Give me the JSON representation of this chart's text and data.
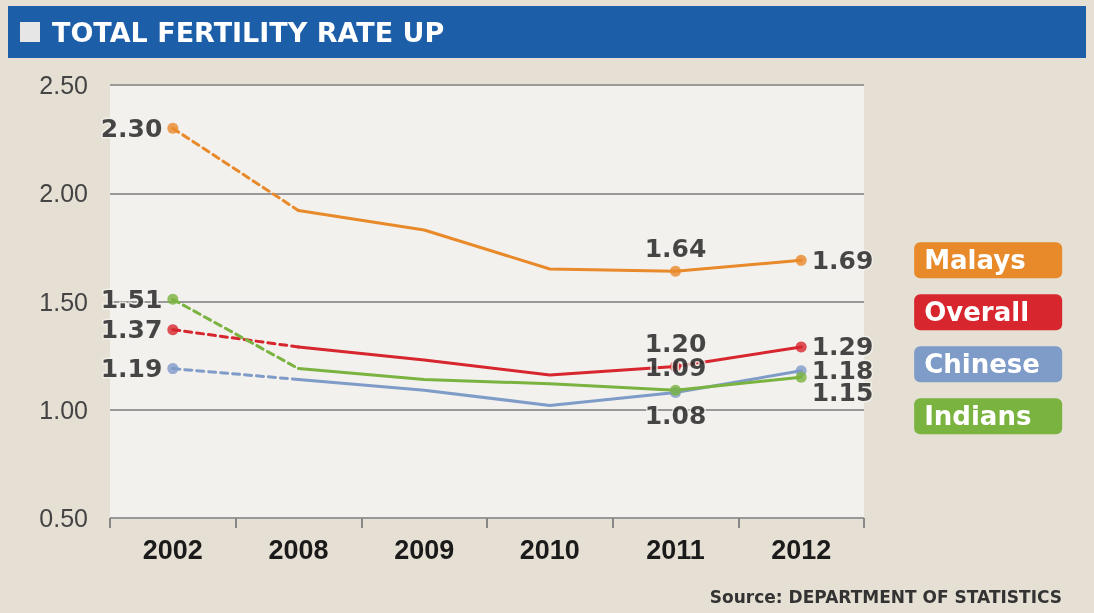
{
  "chart_data": {
    "type": "line",
    "title": "TOTAL FERTILITY RATE UP",
    "annotations": [
      "Source: DEPARTMENT OF STATISTICS"
    ],
    "categories": [
      "2002",
      "2008",
      "2009",
      "2010",
      "2011",
      "2012"
    ],
    "series": [
      {
        "color": "#e8892a",
        "line_style": "dashed",
        "marker": "none",
        "values": [
          2.3,
          1.92,
          null,
          null,
          null,
          null
        ]
      },
      {
        "name": "Malays",
        "color": "#e8892a",
        "line_style": "solid",
        "marker": "none",
        "values": [
          null,
          1.92,
          1.83,
          1.65,
          1.64,
          1.69
        ]
      },
      {
        "type": "scatter",
        "color": "#e8892a",
        "marker": "circle",
        "values": [
          2.3,
          null,
          null,
          null,
          1.64,
          1.69
        ],
        "value_labels": [
          "2.30",
          null,
          null,
          null,
          "1.64",
          "1.69"
        ]
      },
      {
        "color": "#d7262e",
        "line_style": "dashed",
        "marker": "none",
        "values": [
          1.37,
          1.29,
          null,
          null,
          null,
          null
        ]
      },
      {
        "name": "Overall",
        "color": "#d7262e",
        "line_style": "solid",
        "marker": "none",
        "values": [
          null,
          1.29,
          1.23,
          1.16,
          1.2,
          1.29
        ]
      },
      {
        "type": "scatter",
        "color": "#d7262e",
        "marker": "circle",
        "values": [
          1.37,
          null,
          null,
          null,
          1.2,
          1.29
        ],
        "value_labels": [
          "1.37",
          null,
          null,
          null,
          "1.20",
          "1.29"
        ]
      },
      {
        "color": "#7f9bc8",
        "line_style": "dashed",
        "marker": "none",
        "values": [
          1.19,
          1.14,
          null,
          null,
          null,
          null
        ]
      },
      {
        "name": "Chinese",
        "color": "#7f9bc8",
        "line_style": "solid",
        "marker": "none",
        "values": [
          null,
          1.14,
          1.09,
          1.02,
          1.08,
          1.18
        ]
      },
      {
        "type": "scatter",
        "color": "#7f9bc8",
        "marker": "circle",
        "values": [
          1.19,
          null,
          null,
          null,
          1.08,
          1.18
        ],
        "value_labels": [
          "1.19",
          null,
          null,
          null,
          "1.08",
          "1.18"
        ]
      },
      {
        "color": "#7ab33f",
        "line_style": "dashed",
        "marker": "none",
        "values": [
          1.51,
          1.19,
          null,
          null,
          null,
          null
        ]
      },
      {
        "name": "Indians",
        "color": "#7ab33f",
        "line_style": "solid",
        "marker": "none",
        "values": [
          null,
          1.19,
          1.14,
          1.12,
          1.09,
          1.15
        ]
      },
      {
        "type": "scatter",
        "color": "#7ab33f",
        "marker": "circle",
        "values": [
          1.51,
          null,
          null,
          null,
          1.09,
          1.15
        ],
        "value_labels": [
          "1.51",
          null,
          null,
          null,
          "1.09",
          "1.15"
        ]
      }
    ],
    "ylim": [
      0.5,
      2.5
    ],
    "yticks": [
      "0.50",
      "1.00",
      "1.50",
      "2.00",
      "2.50"
    ],
    "grid": "y",
    "legend": false
  }
}
